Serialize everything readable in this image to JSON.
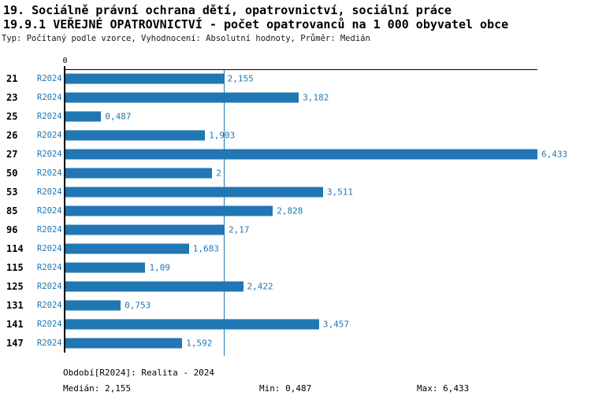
{
  "header": {
    "title1": "19. Sociálně právní ochrana dětí, opatrovnictví, sociální práce",
    "title2": "19.9.1 VEŘEJNÉ OPATROVNICTVÍ - počet opatrovanců na 1 000 obyvatel obce",
    "subtitle": "Typ: Počítaný podle vzorce, Vyhodnocení: Absolutní hodnoty, Průměr: Medián"
  },
  "chart_data": {
    "type": "bar",
    "orientation": "horizontal",
    "title": "19.9.1 VEŘEJNÉ OPATROVNICTVÍ - počet opatrovanců na 1 000 obyvatel obce",
    "categories": [
      "21",
      "23",
      "25",
      "26",
      "27",
      "50",
      "53",
      "85",
      "96",
      "114",
      "115",
      "125",
      "131",
      "141",
      "147"
    ],
    "row_series_label": "R2024",
    "values": [
      2.155,
      3.182,
      0.487,
      1.903,
      6.433,
      2,
      3.511,
      2.828,
      2.17,
      1.683,
      1.09,
      2.422,
      0.753,
      3.457,
      1.592
    ],
    "value_labels": [
      "2,155",
      "3,182",
      "0,487",
      "1,903",
      "6,433",
      "2",
      "3,511",
      "2,828",
      "2,17",
      "1,683",
      "1,09",
      "2,422",
      "0,753",
      "3,457",
      "1,592"
    ],
    "xlim": [
      0,
      6.433
    ],
    "x_tick_labels": [
      "0"
    ],
    "median_value": 2.155,
    "grid": "off",
    "legend": "none",
    "bar_color": "#2077b4",
    "median_line_color": "#2077b4",
    "label_color": "#2077b4"
  },
  "footer": {
    "period": "Období[R2024]: Realita - 2024",
    "median": "Medián: 2,155",
    "min": "Min: 0,487",
    "max": "Max: 6,433"
  }
}
